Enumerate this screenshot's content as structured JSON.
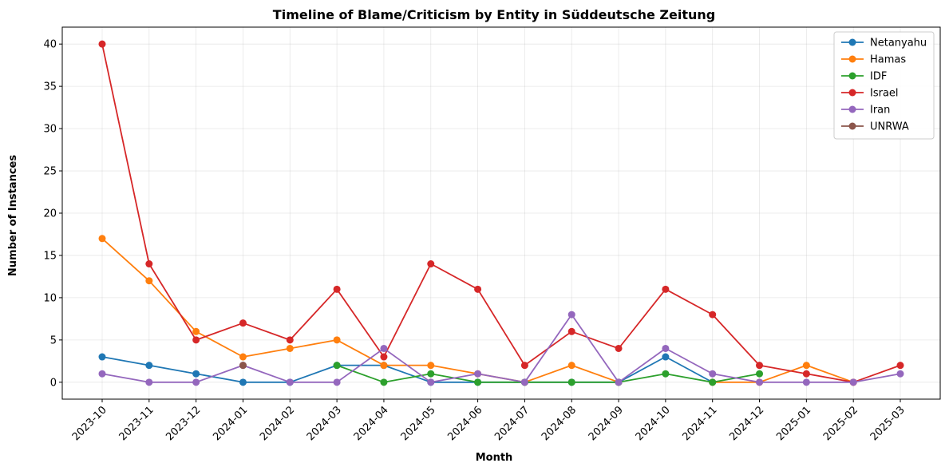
{
  "chart_data": {
    "type": "line",
    "title": "Timeline of Blame/Criticism by Entity in Süddeutsche Zeitung",
    "xlabel": "Month",
    "ylabel": "Number of Instances",
    "categories": [
      "2023-10",
      "2023-11",
      "2023-12",
      "2024-01",
      "2024-02",
      "2024-03",
      "2024-04",
      "2024-05",
      "2024-06",
      "2024-07",
      "2024-08",
      "2024-09",
      "2024-10",
      "2024-11",
      "2024-12",
      "2025-01",
      "2025-02",
      "2025-03"
    ],
    "ylim": [
      -2,
      42
    ],
    "yticks": [
      0,
      5,
      10,
      15,
      20,
      25,
      30,
      35,
      40
    ],
    "grid": true,
    "legend_position": "top-right",
    "series": [
      {
        "name": "Netanyahu",
        "color": "#1f77b4",
        "values": [
          3,
          2,
          1,
          0,
          0,
          2,
          2,
          0,
          0,
          0,
          0,
          0,
          3,
          0,
          null,
          null,
          null,
          null
        ]
      },
      {
        "name": "Hamas",
        "color": "#ff7f0e",
        "values": [
          17,
          12,
          6,
          3,
          4,
          5,
          2,
          2,
          1,
          0,
          2,
          0,
          null,
          0,
          0,
          2,
          0,
          null
        ]
      },
      {
        "name": "IDF",
        "color": "#2ca02c",
        "values": [
          null,
          null,
          null,
          null,
          null,
          2,
          0,
          1,
          0,
          0,
          0,
          0,
          1,
          0,
          1,
          null,
          null,
          null
        ]
      },
      {
        "name": "Israel",
        "color": "#d62728",
        "values": [
          40,
          14,
          5,
          7,
          5,
          11,
          3,
          14,
          11,
          2,
          6,
          4,
          11,
          8,
          2,
          1,
          0,
          2
        ]
      },
      {
        "name": "Iran",
        "color": "#9467bd",
        "values": [
          1,
          0,
          0,
          2,
          0,
          0,
          4,
          0,
          1,
          0,
          8,
          0,
          4,
          1,
          0,
          0,
          0,
          1
        ]
      },
      {
        "name": "UNRWA",
        "color": "#8c564b",
        "values": [
          null,
          null,
          null,
          2,
          null,
          null,
          null,
          null,
          null,
          null,
          null,
          null,
          null,
          null,
          null,
          null,
          null,
          null
        ]
      }
    ]
  }
}
